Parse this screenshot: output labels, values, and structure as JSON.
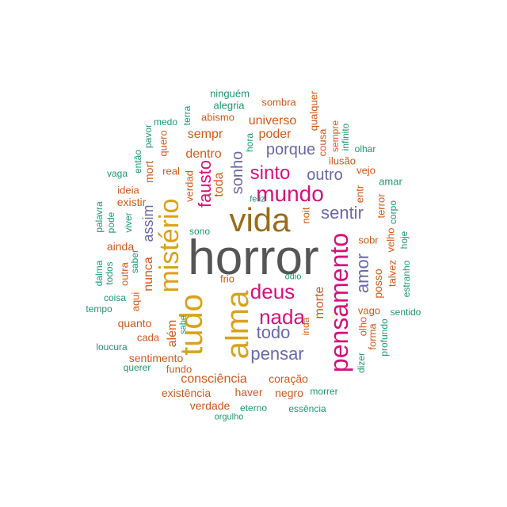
{
  "palette": {
    "gray": "#555555",
    "brown": "#9a6c1a",
    "gold": "#d9a21b",
    "magenta": "#d6127a",
    "purple": "#6b68a8",
    "orange": "#d3591a",
    "green": "#1a9a70"
  },
  "words": [
    {
      "text": "horror",
      "color": "gray"
    },
    {
      "text": "vida",
      "color": "brown"
    },
    {
      "text": "tudo",
      "color": "gold"
    },
    {
      "text": "alma",
      "color": "gold"
    },
    {
      "text": "mistério",
      "color": "gold"
    },
    {
      "text": "pensamento",
      "color": "magenta"
    },
    {
      "text": "mundo",
      "color": "magenta"
    },
    {
      "text": "deus",
      "color": "magenta"
    },
    {
      "text": "nada",
      "color": "magenta"
    },
    {
      "text": "sinto",
      "color": "magenta"
    },
    {
      "text": "fausto",
      "color": "magenta"
    },
    {
      "text": "pensar",
      "color": "purple"
    },
    {
      "text": "todo",
      "color": "purple"
    },
    {
      "text": "sentir",
      "color": "purple"
    },
    {
      "text": "amor",
      "color": "purple"
    },
    {
      "text": "sonho",
      "color": "purple"
    },
    {
      "text": "porque",
      "color": "purple"
    },
    {
      "text": "outro",
      "color": "purple"
    },
    {
      "text": "assim",
      "color": "purple"
    },
    {
      "text": "consciência",
      "color": "orange"
    },
    {
      "text": "morte",
      "color": "orange"
    },
    {
      "text": "poder",
      "color": "orange"
    },
    {
      "text": "universo",
      "color": "orange"
    },
    {
      "text": "sempr",
      "color": "orange"
    },
    {
      "text": "dentro",
      "color": "orange"
    },
    {
      "text": "toda",
      "color": "orange"
    },
    {
      "text": "nunca",
      "color": "orange"
    },
    {
      "text": "mort",
      "color": "orange"
    },
    {
      "text": "além",
      "color": "orange"
    },
    {
      "text": "sentimento",
      "color": "orange"
    },
    {
      "text": "quanto",
      "color": "orange"
    },
    {
      "text": "coração",
      "color": "orange"
    },
    {
      "text": "haver",
      "color": "orange"
    },
    {
      "text": "negro",
      "color": "orange"
    },
    {
      "text": "existência",
      "color": "orange"
    },
    {
      "text": "verdade",
      "color": "orange"
    },
    {
      "text": "fundo",
      "color": "orange"
    },
    {
      "text": "cada",
      "color": "orange"
    },
    {
      "text": "aqui",
      "color": "orange"
    },
    {
      "text": "outra",
      "color": "orange"
    },
    {
      "text": "ainda",
      "color": "orange"
    },
    {
      "text": "existir",
      "color": "orange"
    },
    {
      "text": "ideia",
      "color": "orange"
    },
    {
      "text": "real",
      "color": "orange"
    },
    {
      "text": "verdad",
      "color": "orange"
    },
    {
      "text": "quero",
      "color": "orange"
    },
    {
      "text": "abismo",
      "color": "orange"
    },
    {
      "text": "sombra",
      "color": "orange"
    },
    {
      "text": "qualquer",
      "color": "orange"
    },
    {
      "text": "cousa",
      "color": "orange"
    },
    {
      "text": "sempre",
      "color": "orange"
    },
    {
      "text": "ilusão",
      "color": "orange"
    },
    {
      "text": "vejo",
      "color": "orange"
    },
    {
      "text": "entr",
      "color": "orange"
    },
    {
      "text": "noit",
      "color": "orange"
    },
    {
      "text": "sobr",
      "color": "orange"
    },
    {
      "text": "terror",
      "color": "orange"
    },
    {
      "text": "posso",
      "color": "orange"
    },
    {
      "text": "talvez",
      "color": "orange"
    },
    {
      "text": "velho",
      "color": "orange"
    },
    {
      "text": "vago",
      "color": "orange"
    },
    {
      "text": "olho",
      "color": "orange"
    },
    {
      "text": "forma",
      "color": "orange"
    },
    {
      "text": "inda",
      "color": "orange"
    },
    {
      "text": "frio",
      "color": "orange"
    },
    {
      "text": "ninguém",
      "color": "green"
    },
    {
      "text": "alegria",
      "color": "green"
    },
    {
      "text": "terra",
      "color": "green"
    },
    {
      "text": "medo",
      "color": "green"
    },
    {
      "text": "pavor",
      "color": "green"
    },
    {
      "text": "então",
      "color": "green"
    },
    {
      "text": "vaga",
      "color": "green"
    },
    {
      "text": "hora",
      "color": "green"
    },
    {
      "text": "infinito",
      "color": "green"
    },
    {
      "text": "olhar",
      "color": "green"
    },
    {
      "text": "amar",
      "color": "green"
    },
    {
      "text": "corpo",
      "color": "green"
    },
    {
      "text": "hoje",
      "color": "green"
    },
    {
      "text": "estranho",
      "color": "green"
    },
    {
      "text": "sentido",
      "color": "green"
    },
    {
      "text": "profundo",
      "color": "green"
    },
    {
      "text": "dizer",
      "color": "green"
    },
    {
      "text": "morrer",
      "color": "green"
    },
    {
      "text": "essência",
      "color": "green"
    },
    {
      "text": "eterno",
      "color": "green"
    },
    {
      "text": "orgulho",
      "color": "green"
    },
    {
      "text": "querer",
      "color": "green"
    },
    {
      "text": "loucura",
      "color": "green"
    },
    {
      "text": "tempo",
      "color": "green"
    },
    {
      "text": "coisa",
      "color": "green"
    },
    {
      "text": "dalma",
      "color": "green"
    },
    {
      "text": "todos",
      "color": "green"
    },
    {
      "text": "palavra",
      "color": "green"
    },
    {
      "text": "pode",
      "color": "green"
    },
    {
      "text": "viver",
      "color": "green"
    },
    {
      "text": "saber",
      "color": "green"
    },
    {
      "text": "sabe",
      "color": "green"
    },
    {
      "text": "sono",
      "color": "green"
    },
    {
      "text": "feliz",
      "color": "green"
    },
    {
      "text": "ódio",
      "color": "green"
    }
  ]
}
